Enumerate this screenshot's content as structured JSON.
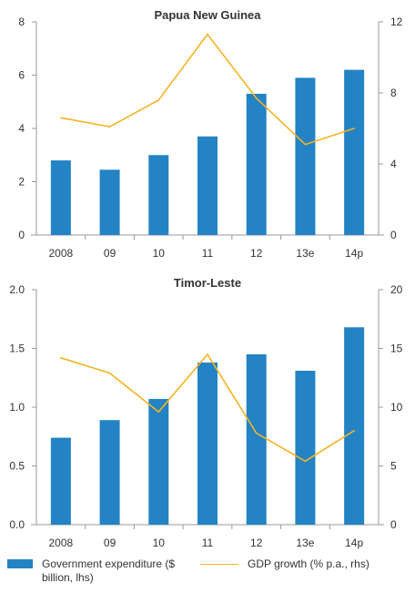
{
  "colors": {
    "bar": "#2383c4",
    "line": "#f5b324",
    "axis": "#999999",
    "text": "#333333"
  },
  "chart_data": [
    {
      "type": "bar",
      "title": "Papua New Guinea",
      "categories": [
        "2008",
        "09",
        "10",
        "11",
        "12",
        "13e",
        "14p"
      ],
      "ylim_left": [
        0,
        8
      ],
      "ylim_right": [
        0,
        12
      ],
      "yticks_left": [
        "0",
        "2",
        "4",
        "6",
        "8"
      ],
      "yticks_right": [
        "0",
        "4",
        "8",
        "12"
      ],
      "grid": false,
      "series": [
        {
          "name": "Government expenditure ($ billion, lhs)",
          "kind": "bar",
          "axis": "left",
          "values": [
            2.8,
            2.45,
            3.0,
            3.7,
            5.3,
            5.9,
            6.2
          ]
        },
        {
          "name": "GDP growth (% p.a., rhs)",
          "kind": "line",
          "axis": "right",
          "values": [
            6.6,
            6.1,
            7.6,
            11.3,
            7.7,
            5.1,
            6.0
          ]
        }
      ]
    },
    {
      "type": "bar",
      "title": "Timor-Leste",
      "categories": [
        "2008",
        "09",
        "10",
        "11",
        "12",
        "13e",
        "14p"
      ],
      "ylim_left": [
        0,
        2
      ],
      "ylim_right": [
        0,
        20
      ],
      "yticks_left": [
        "0.0",
        "0.5",
        "1.0",
        "1.5",
        "2.0"
      ],
      "yticks_right": [
        "0",
        "5",
        "10",
        "15",
        "20"
      ],
      "grid": false,
      "series": [
        {
          "name": "Government expenditure ($ billion, lhs)",
          "kind": "bar",
          "axis": "left",
          "values": [
            0.74,
            0.89,
            1.07,
            1.38,
            1.45,
            1.31,
            1.68
          ]
        },
        {
          "name": "GDP growth (% p.a., rhs)",
          "kind": "line",
          "axis": "right",
          "values": [
            14.2,
            12.9,
            9.6,
            14.5,
            7.8,
            5.4,
            8.0
          ]
        }
      ]
    }
  ],
  "legend": {
    "bar_label": "Government expenditure ($ billion, lhs)",
    "line_label": "GDP growth (% p.a., rhs)"
  }
}
